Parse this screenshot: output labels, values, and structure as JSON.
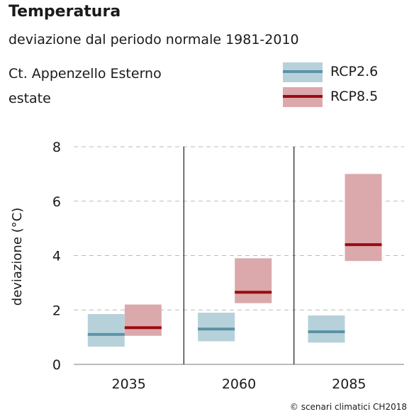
{
  "header": {
    "title": "Temperatura",
    "subtitle": "deviazione dal periodo normale 1981-2010",
    "region": "Ct. Appenzello Esterno",
    "season": "estate"
  },
  "credit": "© scenari climatici CH2018",
  "colors": {
    "rcp26_box": "#b7d1da",
    "rcp26_line": "#5b93a6",
    "rcp85_box": "#dba9ab",
    "rcp85_line": "#9b0b12",
    "grid": "#bbbbbb",
    "axis": "#1a1a1a"
  },
  "chart_data": {
    "type": "box-range",
    "ylabel": "deviazione (°C)",
    "ylim": [
      0,
      8
    ],
    "yticks": [
      0,
      2,
      4,
      6,
      8
    ],
    "grid": "horizontal dashed",
    "legend_position": "top-right",
    "categories": [
      "2035",
      "2060",
      "2085"
    ],
    "series": [
      {
        "name": "RCP2.6",
        "low": [
          0.65,
          0.85,
          0.8
        ],
        "median": [
          1.1,
          1.3,
          1.2
        ],
        "high": [
          1.85,
          1.9,
          1.8
        ]
      },
      {
        "name": "RCP8.5",
        "low": [
          1.05,
          2.25,
          3.8
        ],
        "median": [
          1.35,
          2.65,
          4.4
        ],
        "high": [
          2.2,
          3.9,
          7.0
        ]
      }
    ]
  }
}
